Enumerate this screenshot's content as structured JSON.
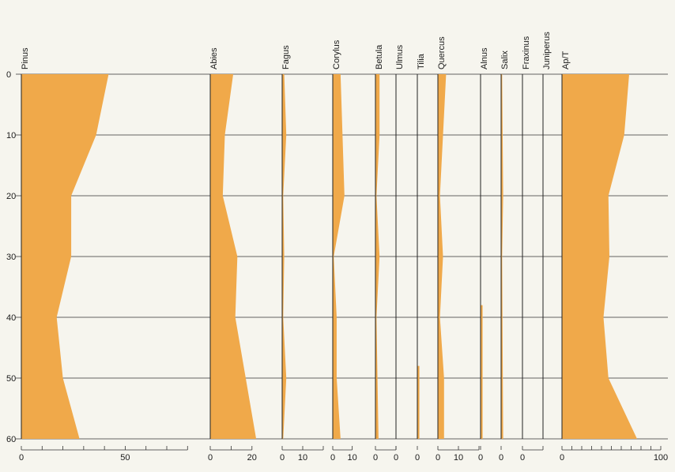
{
  "chart_data": {
    "type": "area",
    "depth_axis": {
      "range": [
        0,
        60
      ],
      "ticks": [
        0,
        10,
        20,
        30,
        40,
        50,
        60
      ]
    },
    "grid": true,
    "fill_color": "#f0a94a",
    "line_color": "#222222",
    "panels": [
      {
        "name": "Pinus",
        "max": 87.5,
        "ticks": [
          {
            "v": 0,
            "label": "0"
          },
          {
            "v": 10
          },
          {
            "v": 20
          },
          {
            "v": 30
          },
          {
            "v": 40
          },
          {
            "v": 50,
            "label": "50"
          },
          {
            "v": 60
          },
          {
            "v": 70
          },
          {
            "v": 80
          }
        ],
        "depth": [
          0,
          10,
          20,
          30,
          40,
          50,
          60
        ],
        "values": [
          42,
          36,
          24,
          24,
          17,
          20,
          28
        ]
      },
      {
        "name": "Abies",
        "max": 25,
        "ticks": [
          {
            "v": 0,
            "label": "0"
          },
          {
            "v": 10
          },
          {
            "v": 20,
            "label": "20"
          }
        ],
        "depth": [
          0,
          10,
          20,
          30,
          40,
          60
        ],
        "values": [
          11,
          7,
          6,
          13,
          12,
          22
        ]
      },
      {
        "name": "Fagus",
        "max": 20,
        "ticks": [
          {
            "v": 0,
            "label": "0"
          },
          {
            "v": 10,
            "label": "10"
          },
          {
            "v": 20
          }
        ],
        "depth": [
          0,
          10,
          20,
          30,
          40,
          50,
          60
        ],
        "values": [
          1,
          2,
          0.5,
          1,
          0.5,
          2,
          0.5
        ]
      },
      {
        "name": "Corylus",
        "max": 15,
        "ticks": [
          {
            "v": 0,
            "label": "0"
          },
          {
            "v": 10,
            "label": "10"
          }
        ],
        "depth": [
          0,
          20,
          30,
          40,
          50,
          60
        ],
        "values": [
          4,
          6,
          0.5,
          2,
          2,
          4
        ]
      },
      {
        "name": "Betula",
        "max": 10,
        "ticks": [
          {
            "v": 0,
            "label": "0"
          },
          {
            "v": 10
          }
        ],
        "depth": [
          0,
          10,
          20,
          30,
          40,
          50,
          60
        ],
        "values": [
          2,
          2,
          0.5,
          2,
          0.5,
          1,
          1.5
        ]
      },
      {
        "name": "Ulmus",
        "max": 10,
        "ticks": [
          {
            "v": 0,
            "label": "0"
          }
        ],
        "depth": [
          0,
          60
        ],
        "values": [
          0,
          0
        ]
      },
      {
        "name": "Tilia",
        "max": 10,
        "ticks": [
          {
            "v": 0,
            "label": "0"
          }
        ],
        "depth": [
          0,
          48,
          48,
          60
        ],
        "values": [
          0,
          0,
          1,
          1
        ]
      },
      {
        "name": "Quercus",
        "max": 20,
        "ticks": [
          {
            "v": 0,
            "label": "0"
          },
          {
            "v": 10,
            "label": "10"
          },
          {
            "v": 20
          }
        ],
        "depth": [
          0,
          20,
          30,
          40,
          50,
          60
        ],
        "values": [
          4,
          1,
          2.5,
          1,
          3,
          3
        ]
      },
      {
        "name": "Alnus",
        "max": 10,
        "ticks": [
          {
            "v": 0,
            "label": "0"
          }
        ],
        "depth": [
          0,
          38,
          38,
          60
        ],
        "values": [
          0,
          0,
          1,
          1
        ]
      },
      {
        "name": "Salix",
        "max": 10,
        "ticks": [
          {
            "v": 0,
            "label": "0"
          }
        ],
        "depth": [
          0,
          20,
          30,
          60
        ],
        "values": [
          0.5,
          1,
          0.5,
          1
        ]
      },
      {
        "name": "Fraxinus",
        "max": 10,
        "ticks": [
          {
            "v": 0,
            "label": "0"
          },
          {
            "v": 10
          }
        ],
        "depth": [
          0,
          60
        ],
        "values": [
          0,
          0
        ]
      },
      {
        "name": "Juniperus",
        "max": 10,
        "ticks": [],
        "depth": [
          0,
          60
        ],
        "values": [
          0,
          0
        ]
      },
      {
        "name": "Ap/T",
        "max": 100,
        "ticks": [
          {
            "v": 0,
            "label": "0"
          },
          {
            "v": 10
          },
          {
            "v": 20
          },
          {
            "v": 30
          },
          {
            "v": 40
          },
          {
            "v": 50
          },
          {
            "v": 60
          },
          {
            "v": 70
          },
          {
            "v": 80
          },
          {
            "v": 90
          },
          {
            "v": 100,
            "label": "100"
          }
        ],
        "depth": [
          0,
          10,
          20,
          30,
          40,
          50,
          60
        ],
        "values": [
          68,
          63,
          47,
          48,
          42,
          47,
          76
        ]
      }
    ]
  }
}
